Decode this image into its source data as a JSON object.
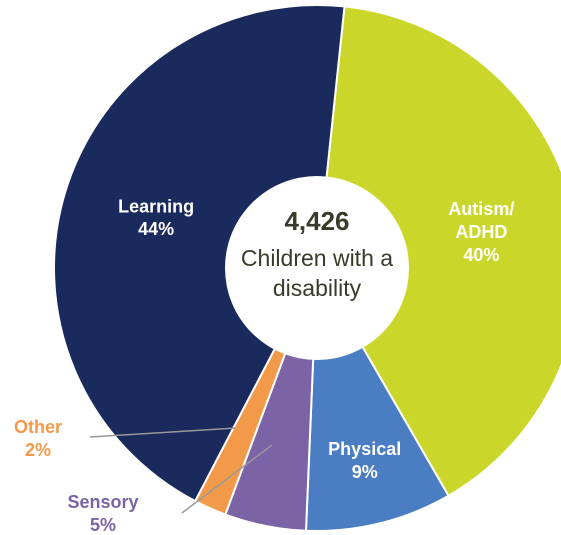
{
  "chart_data": {
    "type": "donut",
    "center_value": "4,426",
    "center_label": "Children with a disability",
    "categories": [
      "Autism/ADHD",
      "Physical",
      "Sensory",
      "Other",
      "Learning"
    ],
    "values": [
      40,
      9,
      5,
      2,
      44
    ],
    "value_labels": [
      "40%",
      "9%",
      "5%",
      "2%",
      "44%"
    ],
    "colors": [
      "#cbd62a",
      "#4a7dc1",
      "#7c63a5",
      "#f29a4a",
      "#1b2a5c"
    ]
  }
}
